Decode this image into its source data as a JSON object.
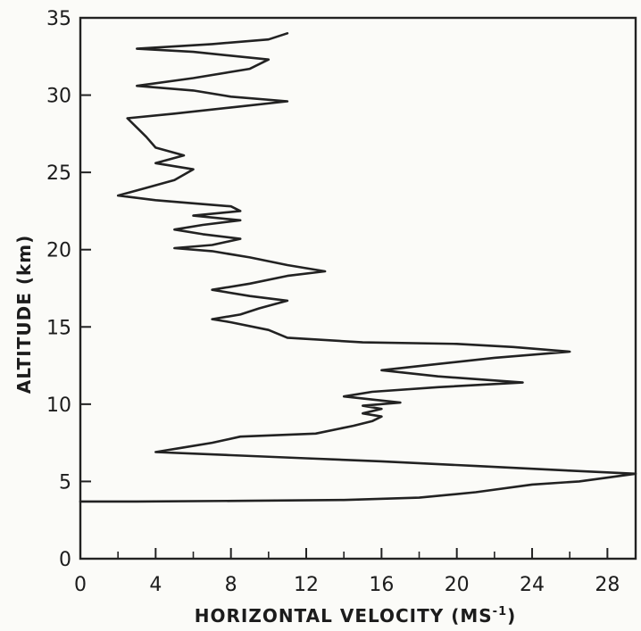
{
  "chart_data": {
    "type": "line",
    "title": "",
    "xlabel": "HORIZONTAL VELOCITY (MS",
    "xlabel_superscript": "-1",
    "xlabel_close": ")",
    "ylabel": "ALTITUDE (km)",
    "xlim": [
      0,
      29.5
    ],
    "ylim": [
      0,
      35
    ],
    "x_ticks": [
      0,
      4,
      8,
      12,
      16,
      20,
      24,
      28
    ],
    "x_tick_labels": [
      "0",
      "4",
      "8",
      "12",
      "16",
      "20",
      "24",
      "28"
    ],
    "y_ticks": [
      0,
      5,
      10,
      15,
      20,
      25,
      30,
      35
    ],
    "y_tick_labels": [
      "0",
      "5",
      "10",
      "15",
      "20",
      "25",
      "30",
      "35"
    ],
    "grid": false,
    "line_color": "#222222",
    "series": [
      {
        "points": [
          [
            0,
            3.7
          ],
          [
            3,
            3.7
          ],
          [
            9,
            3.75
          ],
          [
            14,
            3.8
          ],
          [
            18,
            3.95
          ],
          [
            21,
            4.3
          ],
          [
            24,
            4.8
          ],
          [
            26.5,
            5.0
          ],
          [
            29.5,
            5.5
          ],
          [
            26,
            5.7
          ],
          [
            21,
            6.0
          ],
          [
            16,
            6.3
          ],
          [
            12,
            6.5
          ],
          [
            8,
            6.7
          ],
          [
            4,
            6.9
          ],
          [
            5.5,
            7.2
          ],
          [
            7,
            7.5
          ],
          [
            8.5,
            7.9
          ],
          [
            12.5,
            8.1
          ],
          [
            14.5,
            8.6
          ],
          [
            15.5,
            8.9
          ],
          [
            16,
            9.2
          ],
          [
            15,
            9.4
          ],
          [
            16,
            9.7
          ],
          [
            15,
            9.9
          ],
          [
            17,
            10.1
          ],
          [
            14,
            10.5
          ],
          [
            15.5,
            10.8
          ],
          [
            19,
            11.1
          ],
          [
            23.5,
            11.4
          ],
          [
            19,
            11.8
          ],
          [
            16,
            12.2
          ],
          [
            19,
            12.6
          ],
          [
            22,
            13.0
          ],
          [
            26,
            13.4
          ],
          [
            23,
            13.7
          ],
          [
            20,
            13.9
          ],
          [
            15,
            14.0
          ],
          [
            11,
            14.3
          ],
          [
            10,
            14.8
          ],
          [
            8,
            15.3
          ],
          [
            7,
            15.5
          ],
          [
            8.5,
            15.8
          ],
          [
            9.5,
            16.2
          ],
          [
            11,
            16.7
          ],
          [
            9,
            17.0
          ],
          [
            7,
            17.4
          ],
          [
            9,
            17.8
          ],
          [
            11,
            18.3
          ],
          [
            13,
            18.6
          ],
          [
            11,
            19.0
          ],
          [
            9,
            19.5
          ],
          [
            7,
            19.9
          ],
          [
            5,
            20.1
          ],
          [
            7,
            20.3
          ],
          [
            8.5,
            20.7
          ],
          [
            6.5,
            21.0
          ],
          [
            5,
            21.3
          ],
          [
            6.5,
            21.6
          ],
          [
            8.5,
            21.9
          ],
          [
            6,
            22.2
          ],
          [
            8.5,
            22.5
          ],
          [
            8,
            22.8
          ],
          [
            6,
            23.0
          ],
          [
            4,
            23.2
          ],
          [
            2,
            23.5
          ],
          [
            3.5,
            24.0
          ],
          [
            5,
            24.5
          ],
          [
            6,
            25.2
          ],
          [
            4,
            25.6
          ],
          [
            5.5,
            26.1
          ],
          [
            4,
            26.6
          ],
          [
            3.5,
            27.3
          ],
          [
            3,
            27.9
          ],
          [
            2.5,
            28.5
          ],
          [
            5,
            28.8
          ],
          [
            8,
            29.2
          ],
          [
            11,
            29.6
          ],
          [
            8,
            29.9
          ],
          [
            6,
            30.3
          ],
          [
            3,
            30.6
          ],
          [
            6,
            31.1
          ],
          [
            9,
            31.7
          ],
          [
            10,
            32.3
          ],
          [
            6,
            32.8
          ],
          [
            3,
            33.0
          ],
          [
            7,
            33.3
          ],
          [
            10,
            33.6
          ],
          [
            11,
            34.0
          ]
        ]
      }
    ]
  }
}
